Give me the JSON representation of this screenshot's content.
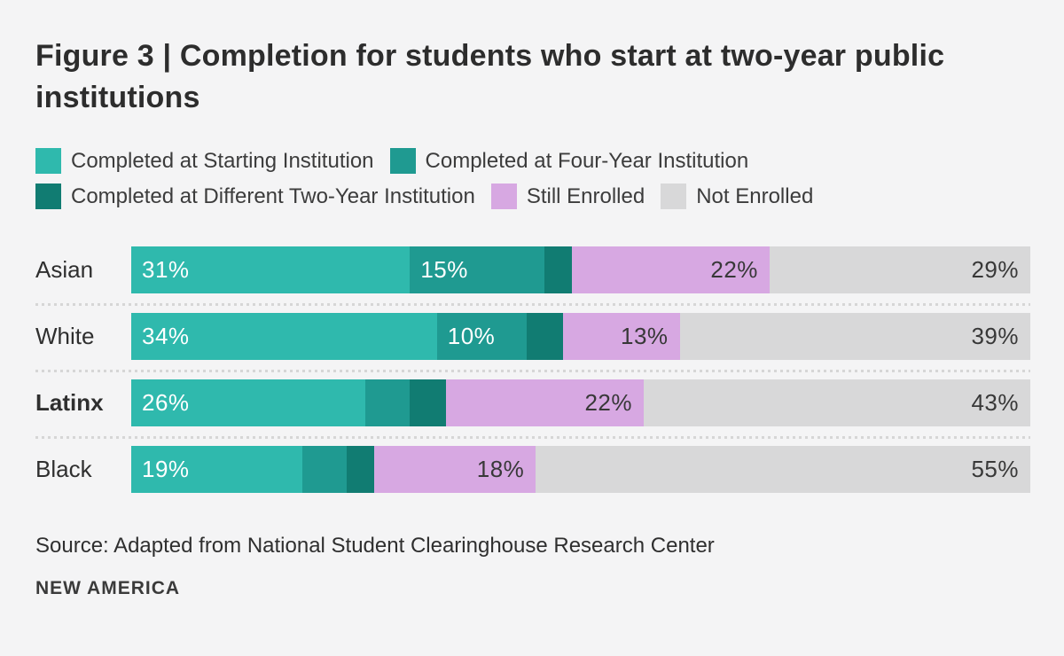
{
  "title": "Figure 3 | Completion for students who start at two-year public institutions",
  "colors": {
    "background": "#f4f4f5",
    "starting_institution": "#2fb9ad",
    "four_year_institution": "#1f9a91",
    "different_two_year_institution": "#117c72",
    "still_enrolled": "#d7a8e2",
    "not_enrolled": "#d8d8d9",
    "label_on_teal": "#ffffff",
    "label_on_light": "#383838",
    "separator": "#d6d6d6"
  },
  "legend": {
    "items": [
      {
        "label": "Completed at Starting Institution",
        "color": "#2fb9ad",
        "row": 1
      },
      {
        "label": "Completed at Four-Year Institution",
        "color": "#1f9a91",
        "row": 1
      },
      {
        "label": "Completed at Different Two-Year Institution",
        "color": "#117c72",
        "row": 2
      },
      {
        "label": "Still Enrolled",
        "color": "#d7a8e2",
        "row": 2
      },
      {
        "label": "Not Enrolled",
        "color": "#d8d8d9",
        "row": 2
      }
    ]
  },
  "chart_data": {
    "type": "bar",
    "orientation": "horizontal-stacked",
    "unit": "percent",
    "axis_range": [
      0,
      100
    ],
    "grid": false,
    "legend_position": "top",
    "categories": [
      "Asian",
      "White",
      "Latinx",
      "Black"
    ],
    "category_bold": [
      false,
      false,
      true,
      false
    ],
    "series": [
      {
        "name": "Completed at Starting Institution",
        "color": "#2fb9ad",
        "text_color": "#ffffff",
        "label_align": "left",
        "values": [
          31,
          34,
          26,
          19
        ],
        "labels": [
          "31%",
          "34%",
          "26%",
          "19%"
        ]
      },
      {
        "name": "Completed at Four-Year Institution",
        "color": "#1f9a91",
        "text_color": "#ffffff",
        "label_align": "left",
        "values": [
          15,
          10,
          5,
          5
        ],
        "labels": [
          "15%",
          "10%",
          "",
          ""
        ]
      },
      {
        "name": "Completed at Different Two-Year Institution",
        "color": "#117c72",
        "text_color": "#ffffff",
        "label_align": "left",
        "values": [
          3,
          4,
          4,
          3
        ],
        "labels": [
          "",
          "",
          "",
          ""
        ]
      },
      {
        "name": "Still Enrolled",
        "color": "#d7a8e2",
        "text_color": "#383838",
        "label_align": "right",
        "values": [
          22,
          13,
          22,
          18
        ],
        "labels": [
          "22%",
          "13%",
          "22%",
          "18%"
        ]
      },
      {
        "name": "Not Enrolled",
        "color": "#d8d8d9",
        "text_color": "#383838",
        "label_align": "right",
        "values": [
          29,
          39,
          43,
          55
        ],
        "labels": [
          "29%",
          "39%",
          "43%",
          "55%"
        ]
      }
    ]
  },
  "source": {
    "prefix": "Source:",
    "text": "Adapted from National Student Clearinghouse Research Center"
  },
  "footer": {
    "brand": "NEW AMERICA"
  }
}
